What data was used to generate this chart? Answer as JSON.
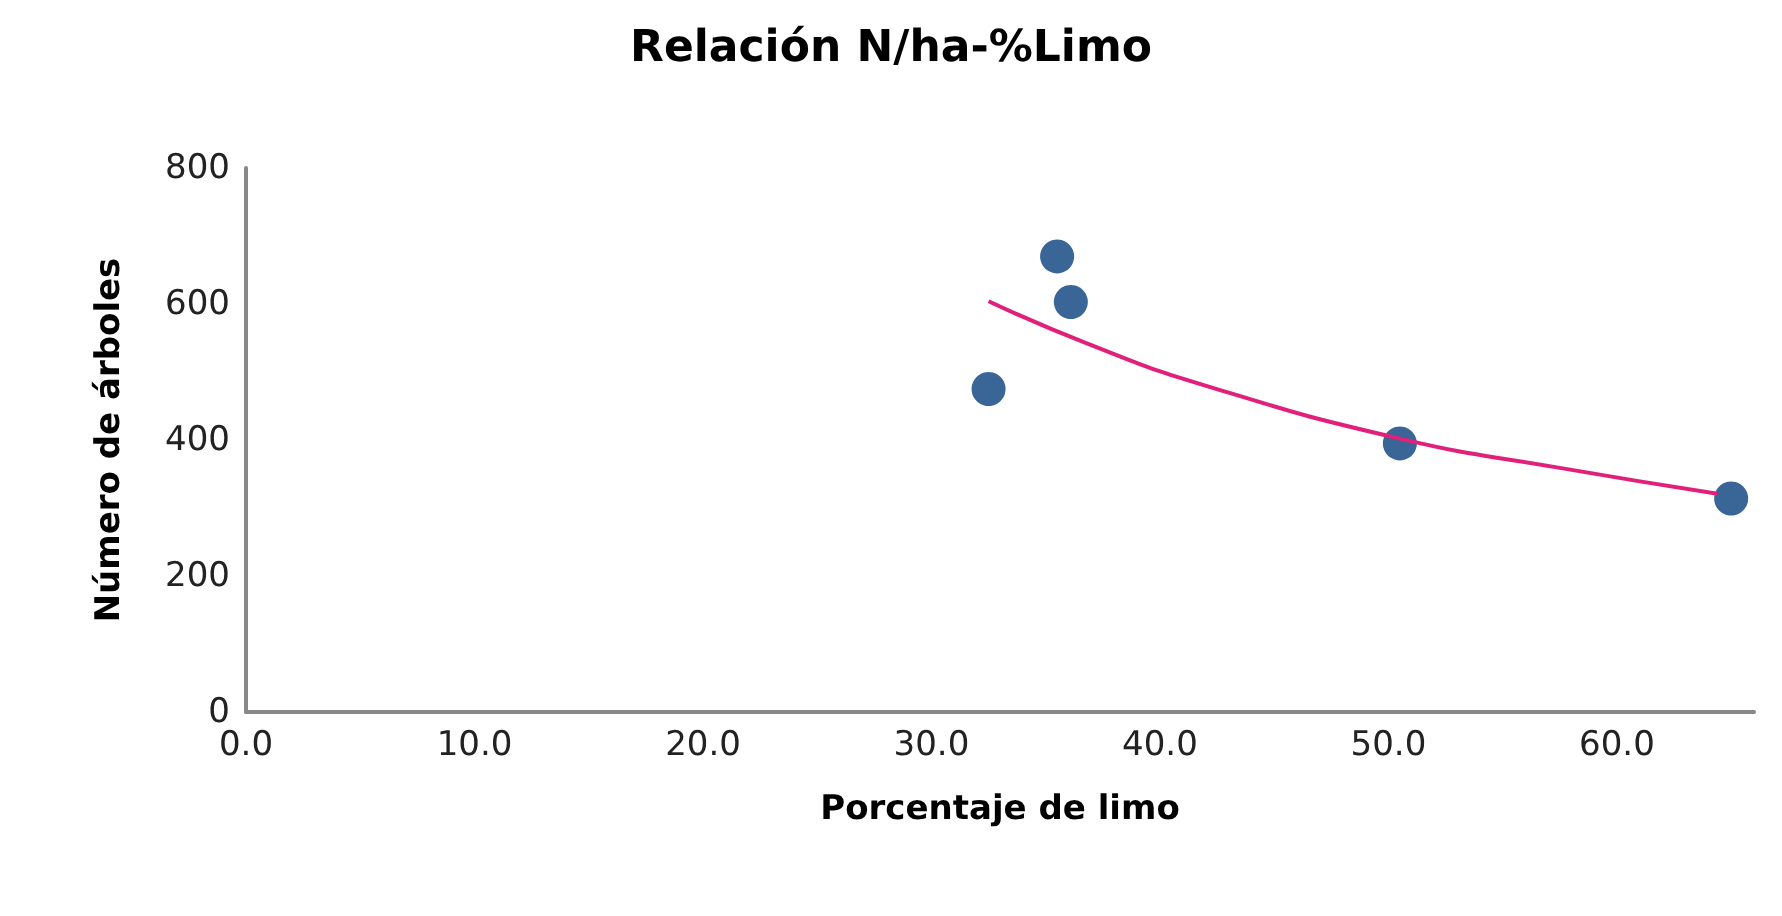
{
  "chart_data": {
    "type": "scatter",
    "title": "Relación N/ha-%Limo",
    "xlabel": "Porcentaje de limo",
    "ylabel": "Número de árboles",
    "xlim": [
      0,
      66
    ],
    "xticks": [
      {
        "value": 0,
        "label": "0.0"
      },
      {
        "value": 10,
        "label": "10.0"
      },
      {
        "value": 20,
        "label": "20.0"
      },
      {
        "value": 30,
        "label": "30.0"
      },
      {
        "value": 40,
        "label": "40.0"
      },
      {
        "value": 50,
        "label": "50.0"
      },
      {
        "value": 60,
        "label": "60.0"
      }
    ],
    "ylim": [
      0,
      800
    ],
    "yticks": [
      0,
      200,
      400,
      600,
      800
    ],
    "grid": false,
    "marker": "circle",
    "series": [
      {
        "type": "scatter",
        "color": "#3a6597",
        "x": [
          32.5,
          35.5,
          36.1,
          50.5,
          65.0
        ],
        "values": [
          475,
          670,
          603,
          395,
          314
        ]
      },
      {
        "type": "line",
        "color": "#e0207a",
        "marker": "none",
        "line_style": "solid",
        "x": [
          32.5,
          36.8,
          41.7,
          50.5,
          57.5,
          64.4
        ],
        "values": [
          604,
          542,
          483,
          402,
          359,
          321
        ]
      }
    ]
  }
}
